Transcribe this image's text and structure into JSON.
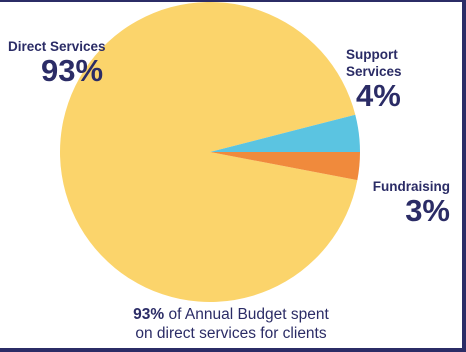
{
  "colors": {
    "frame": "#2b2c66",
    "text": "#2b2c66",
    "direct": "#fbd46b",
    "support": "#5bc4e1",
    "fundraising": "#f08a3c"
  },
  "chart_data": {
    "type": "pie",
    "categories": [
      "Direct Services",
      "Support Services",
      "Fundraising"
    ],
    "values": [
      93,
      4,
      3
    ],
    "labels": [
      "93%",
      "4%",
      "3%"
    ],
    "colors": [
      "#fbd46b",
      "#5bc4e1",
      "#f08a3c"
    ]
  },
  "labels": {
    "direct": {
      "name": "Direct Services",
      "pct": "93%"
    },
    "support": {
      "name_line1": "Support",
      "name_line2": "Services",
      "pct": "4%"
    },
    "fundraising": {
      "name": "Fundraising",
      "pct": "3%"
    }
  },
  "caption": {
    "bold": "93%",
    "rest_line1": " of Annual Budget spent",
    "line2": "on direct services for clients"
  }
}
